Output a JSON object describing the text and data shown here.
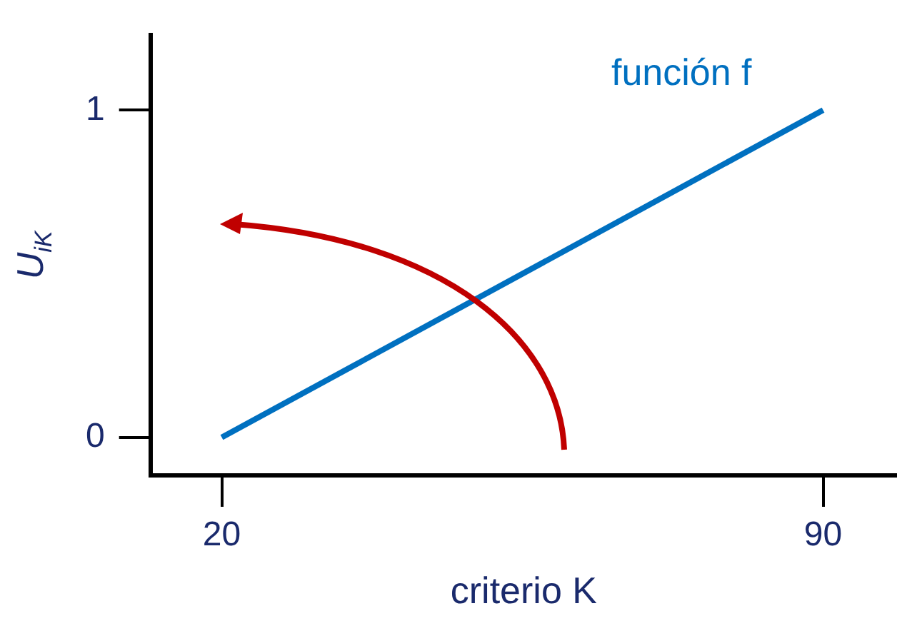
{
  "chart_data": {
    "type": "line",
    "xlabel": "criterio K",
    "ylabel": "U$_{iK}$",
    "x": [
      20,
      90
    ],
    "series": [
      {
        "name": "función f",
        "color": "#0070c0",
        "values": [
          0,
          1
        ]
      }
    ],
    "xlim": [
      11.7,
      98.6
    ],
    "ylim": [
      -0.116,
      1.23
    ],
    "xticks": [
      20,
      90
    ],
    "yticks": [
      0,
      1
    ],
    "grid": false,
    "legend": false,
    "marker": "none",
    "line_style": "solid"
  }
}
